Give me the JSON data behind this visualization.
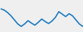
{
  "x": [
    0,
    1,
    2,
    3,
    4,
    5,
    6,
    7,
    8,
    9,
    10,
    11,
    12,
    13,
    14,
    15,
    16,
    17,
    18,
    19,
    20,
    21,
    22,
    23,
    24
  ],
  "y": [
    9.5,
    9.2,
    8.6,
    7.8,
    6.8,
    5.8,
    5.2,
    5.8,
    6.6,
    6.0,
    5.5,
    6.2,
    7.0,
    6.4,
    5.9,
    6.5,
    7.4,
    8.8,
    8.2,
    7.6,
    8.3,
    7.8,
    6.8,
    5.8,
    5.2
  ],
  "line_color": "#1a7abf",
  "linewidth": 1.3,
  "background_color": "#efefef",
  "ylim": [
    4.0,
    11.5
  ],
  "xlim": [
    0,
    24
  ]
}
